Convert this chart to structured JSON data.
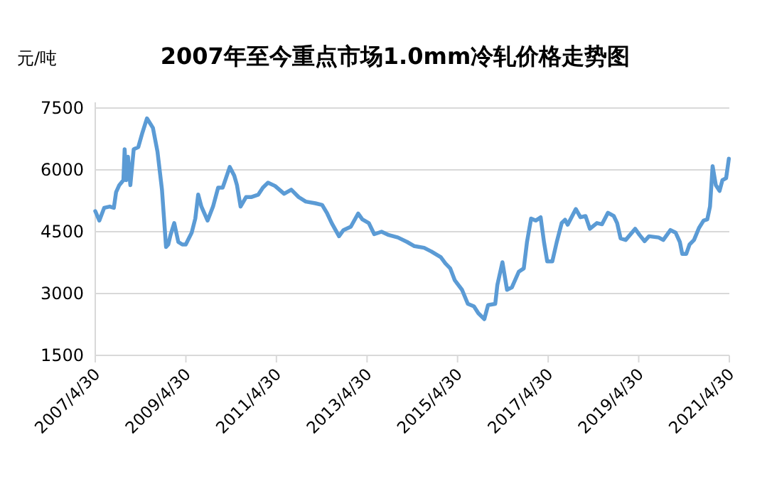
{
  "chart_data": {
    "type": "line",
    "title": "2007年至今重点市场1.0mm冷轧价格走势图",
    "ylabel": "元/吨",
    "x": [
      "2007-04-30",
      "2007-06-02",
      "2007-07-11",
      "2007-08-25",
      "2007-09-27",
      "2007-10-15",
      "2007-11-10",
      "2007-12-13",
      "2007-12-23",
      "2008-01-04",
      "2008-01-19",
      "2008-02-07",
      "2008-03-05",
      "2008-04-11",
      "2008-05-14",
      "2008-06-20",
      "2008-08-07",
      "2008-09-13",
      "2008-10-19",
      "2008-11-21",
      "2008-12-09",
      "2008-12-27",
      "2009-01-26",
      "2009-02-28",
      "2009-04-01",
      "2009-04-29",
      "2009-06-16",
      "2009-07-15",
      "2009-08-07",
      "2009-09-02",
      "2009-10-22",
      "2009-12-05",
      "2010-01-15",
      "2010-02-21",
      "2010-04-19",
      "2010-05-25",
      "2010-06-16",
      "2010-07-15",
      "2010-08-28",
      "2010-10-08",
      "2010-12-05",
      "2011-01-11",
      "2011-02-21",
      "2011-04-19",
      "2011-07-01",
      "2011-08-28",
      "2011-10-26",
      "2011-12-23",
      "2012-03-09",
      "2012-05-03",
      "2012-06-13",
      "2012-07-19",
      "2012-09-16",
      "2012-10-22",
      "2012-12-20",
      "2013-02-17",
      "2013-03-23",
      "2013-05-14",
      "2013-06-27",
      "2013-08-25",
      "2013-10-22",
      "2014-01-04",
      "2014-03-20",
      "2014-05-17",
      "2014-08-03",
      "2014-10-01",
      "2014-12-16",
      "2015-01-22",
      "2015-03-02",
      "2015-04-08",
      "2015-06-05",
      "2015-07-22",
      "2015-09-09",
      "2015-10-15",
      "2015-12-02",
      "2016-01-01",
      "2016-02-28",
      "2016-03-16",
      "2016-04-26",
      "2016-06-02",
      "2016-07-11",
      "2016-09-05",
      "2016-10-15",
      "2016-11-10",
      "2016-12-13",
      "2017-01-19",
      "2017-02-28",
      "2017-03-27",
      "2017-04-22",
      "2017-06-02",
      "2017-07-08",
      "2017-08-17",
      "2017-09-13",
      "2017-10-04",
      "2017-12-09",
      "2018-01-15",
      "2018-02-25",
      "2018-04-01",
      "2018-05-28",
      "2018-07-08",
      "2018-08-25",
      "2018-10-11",
      "2018-11-07",
      "2018-12-05",
      "2019-01-15",
      "2019-04-01",
      "2019-05-07",
      "2019-06-16",
      "2019-07-22",
      "2019-10-08",
      "2019-11-14",
      "2020-01-11",
      "2020-02-21",
      "2020-03-27",
      "2020-04-15",
      "2020-05-17",
      "2020-06-13",
      "2020-07-19",
      "2020-08-28",
      "2020-10-04",
      "2020-11-03",
      "2020-11-25",
      "2020-12-16",
      "2021-01-11",
      "2021-02-10",
      "2021-03-05",
      "2021-04-04",
      "2021-04-26"
    ],
    "series": [
      {
        "color": "#5b9bd5",
        "values": [
          5000,
          4770,
          5080,
          5110,
          5080,
          5460,
          5630,
          5750,
          6500,
          5750,
          6320,
          5630,
          6500,
          6550,
          6900,
          7250,
          7020,
          6440,
          5520,
          4130,
          4190,
          4420,
          4710,
          4250,
          4190,
          4190,
          4480,
          4820,
          5400,
          5110,
          4770,
          5110,
          5570,
          5570,
          6070,
          5860,
          5630,
          5110,
          5340,
          5340,
          5400,
          5570,
          5690,
          5610,
          5420,
          5520,
          5340,
          5230,
          5190,
          5150,
          4940,
          4710,
          4390,
          4540,
          4620,
          4940,
          4800,
          4710,
          4440,
          4500,
          4420,
          4360,
          4250,
          4150,
          4110,
          4020,
          3880,
          3730,
          3610,
          3320,
          3090,
          2750,
          2690,
          2520,
          2380,
          2720,
          2750,
          3210,
          3760,
          3090,
          3150,
          3530,
          3610,
          4250,
          4820,
          4770,
          4850,
          4250,
          3780,
          3780,
          4250,
          4710,
          4790,
          4670,
          5050,
          4850,
          4880,
          4570,
          4710,
          4680,
          4960,
          4880,
          4710,
          4340,
          4300,
          4570,
          4420,
          4270,
          4390,
          4360,
          4300,
          4540,
          4480,
          4250,
          3960,
          3960,
          4190,
          4300,
          4590,
          4770,
          4800,
          5110,
          6090,
          5630,
          5490,
          5750,
          5800,
          6270
        ]
      }
    ],
    "xlim": [
      "2007-04-30",
      "2021-04-30"
    ],
    "xticks": [
      {
        "value": "2007-04-30",
        "label": "2007/4/30"
      },
      {
        "value": "2009-04-30",
        "label": "2009/4/30"
      },
      {
        "value": "2011-04-30",
        "label": "2011/4/30"
      },
      {
        "value": "2013-04-30",
        "label": "2013/4/30"
      },
      {
        "value": "2015-04-30",
        "label": "2015/4/30"
      },
      {
        "value": "2017-04-30",
        "label": "2017/4/30"
      },
      {
        "value": "2019-04-30",
        "label": "2019/4/30"
      },
      {
        "value": "2021-04-30",
        "label": "2021/4/30"
      }
    ],
    "ylim": [
      1500,
      7500
    ],
    "yticks": [
      1500,
      3000,
      4500,
      6000,
      7500
    ],
    "grid": "y",
    "line_style": "solid"
  }
}
